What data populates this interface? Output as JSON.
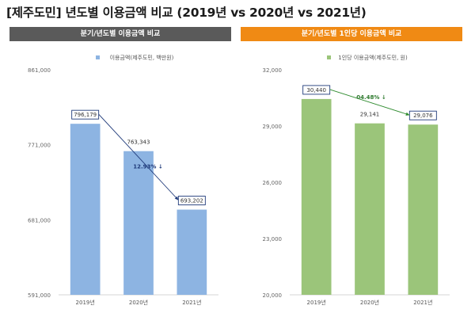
{
  "page": {
    "title": "[제주도민] 년도별 이용금액 비교 (2019년 vs 2020년 vs 2021년)"
  },
  "chart_data": [
    {
      "type": "bar",
      "panel_title": "분기/년도별 이용금액 비교",
      "legend": "이용금액(제주도민, 백만원)",
      "legend_placement": "top-center",
      "categories": [
        "2019년",
        "2020년",
        "2021년"
      ],
      "series": [
        {
          "name": "이용금액(제주도민, 백만원)",
          "values": [
            796179,
            763343,
            693202
          ]
        }
      ],
      "data_labels": [
        "796,179",
        "763,343",
        "693,202"
      ],
      "boxed_labels": [
        0,
        2
      ],
      "ylim": [
        591000,
        861000
      ],
      "yticks": [
        591000,
        681000,
        771000,
        861000
      ],
      "ytick_labels": [
        "591,000",
        "681,000",
        "771,000",
        "861,000"
      ],
      "trend": {
        "from": 0,
        "to": 2,
        "label": "12.93% ↓"
      },
      "grid": false,
      "colors": {
        "bar": "#8db4e2",
        "header": "#5a5a5a",
        "trend": "#1f3a7a",
        "trend_label": "#1f3a7a",
        "box": "#1f3a7a"
      }
    },
    {
      "type": "bar",
      "panel_title": "분기/년도별 1인당 이용금액 비교",
      "legend": "1인당 이용금액(제주도민, 원)",
      "legend_placement": "top-center",
      "categories": [
        "2019년",
        "2020년",
        "2021년"
      ],
      "series": [
        {
          "name": "1인당 이용금액(제주도민, 원)",
          "values": [
            30440,
            29141,
            29076
          ]
        }
      ],
      "data_labels": [
        "30,440",
        "29,141",
        "29,076"
      ],
      "boxed_labels": [
        0,
        2
      ],
      "ylim": [
        20000,
        32000
      ],
      "yticks": [
        20000,
        23000,
        26000,
        29000,
        32000
      ],
      "ytick_labels": [
        "20,000",
        "23,000",
        "26,000",
        "29,000",
        "32,000"
      ],
      "trend": {
        "from": 0,
        "to": 2,
        "label": "04.48% ↓"
      },
      "grid": false,
      "colors": {
        "bar": "#9bc57a",
        "header": "#f08a14",
        "trend": "#2e8b2e",
        "trend_label": "#2e7a2e",
        "box": "#1f3a7a"
      }
    }
  ]
}
